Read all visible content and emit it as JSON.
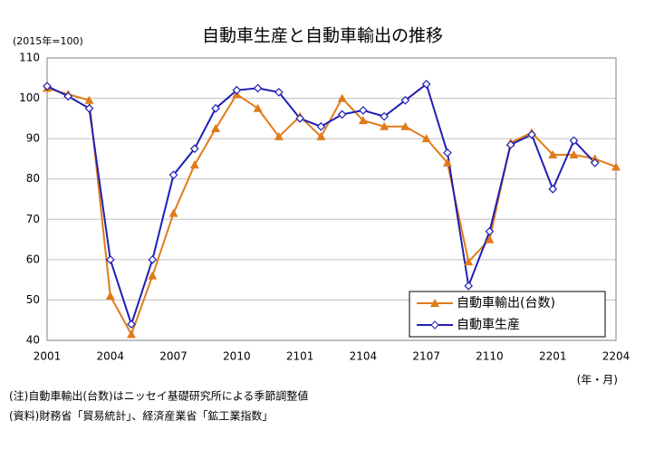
{
  "chart_data": {
    "type": "line",
    "title": "自動車生産と自動車輸出の推移",
    "y_unit_label": "(2015年=100)",
    "x_unit_label": "(年・月)",
    "notes": [
      "(注)自動車輸出(台数)はニッセイ基礎研究所による季節調整値",
      "(資料)財務省「貿易統計」、経済産業省「鉱工業指数」"
    ],
    "categories": [
      "2001",
      null,
      null,
      "2004",
      null,
      null,
      "2007",
      null,
      null,
      "2010",
      null,
      null,
      "2101",
      null,
      null,
      "2104",
      null,
      null,
      "2107",
      null,
      null,
      "2110",
      null,
      null,
      "2201",
      null,
      null,
      "2204"
    ],
    "series": [
      {
        "name": "自動車輸出(台数)",
        "color": "#e07b1a",
        "marker": "triangle",
        "values": [
          102.5,
          101,
          99.5,
          51,
          41.5,
          56,
          71.5,
          83.5,
          92.5,
          101,
          97.5,
          90.5,
          95.5,
          90.5,
          100,
          94.5,
          93,
          93,
          90,
          84,
          59.5,
          65,
          89,
          91.5,
          86,
          86,
          85,
          83
        ]
      },
      {
        "name": "自動車生産",
        "color": "#1f1fb4",
        "marker": "diamond",
        "values": [
          103,
          100.5,
          97.5,
          60,
          44,
          60,
          81,
          87.5,
          97.5,
          102,
          102.5,
          101.5,
          95,
          93,
          96,
          97,
          95.5,
          99.5,
          103.5,
          86.5,
          53.5,
          67,
          88.5,
          91,
          77.5,
          89.5,
          84,
          null
        ]
      }
    ],
    "ylim": [
      40,
      110
    ],
    "yticks": [
      40,
      50,
      60,
      70,
      80,
      90,
      100,
      110
    ],
    "grid": true
  }
}
